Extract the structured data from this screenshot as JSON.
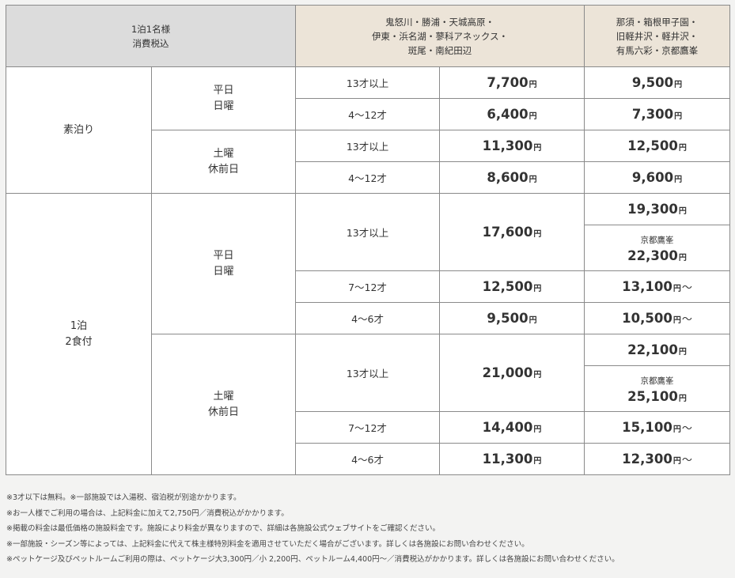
{
  "header": {
    "basis": [
      "1泊1名様",
      "消費税込"
    ],
    "group_a": [
      "鬼怒川・勝浦・天城高原・",
      "伊東・浜名湖・蓼科アネックス・",
      "斑尾・南紀田辺"
    ],
    "group_b": [
      "那須・箱根甲子園・",
      "旧軽井沢・軽井沢・",
      "有馬六彩・京都鷹峯"
    ]
  },
  "labels": {
    "room_only": "素泊り",
    "two_meals": [
      "1泊",
      "2食付"
    ],
    "weekday": [
      "平日",
      "日曜"
    ],
    "saturday": [
      "土曜",
      "休前日"
    ],
    "age_13": "13才以上",
    "age_4_12": "4〜12才",
    "age_7_12": "7〜12才",
    "age_4_6": "4〜6才",
    "yen": "円",
    "from": "〜",
    "kyoto": "京都鷹峯"
  },
  "room_only": {
    "weekday": {
      "adult": {
        "a": "7,700",
        "b": "9,500"
      },
      "child": {
        "a": "6,400",
        "b": "7,300"
      }
    },
    "saturday": {
      "adult": {
        "a": "11,300",
        "b": "12,500"
      },
      "child": {
        "a": "8,600",
        "b": "9,600"
      }
    }
  },
  "two_meals": {
    "weekday": {
      "adult": {
        "a": "17,600",
        "b": "19,300",
        "b_kyoto": "22,300"
      },
      "child_7_12": {
        "a": "12,500",
        "b": "13,100"
      },
      "child_4_6": {
        "a": "9,500",
        "b": "10,500"
      }
    },
    "saturday": {
      "adult": {
        "a": "21,000",
        "b": "22,100",
        "b_kyoto": "25,100"
      },
      "child_7_12": {
        "a": "14,400",
        "b": "15,100"
      },
      "child_4_6": {
        "a": "11,300",
        "b": "12,300"
      }
    }
  },
  "notes": [
    "※3才以下は無料。※一部施設では入湯税、宿泊税が別途かかります。",
    "※お一人様でご利用の場合は、上記料金に加えて2,750円／消費税込がかかります。",
    "※掲載の料金は最低価格の施設料金です。施設により料金が異なりますので、詳細は各施設公式ウェブサイトをご確認ください。",
    "※一部施設・シーズン等によっては、上記料金に代えて株主様特別料金を適用させていただく場合がございます。詳しくは各施設にお問い合わせください。",
    "※ペットケージ及びペットルームご利用の際は、ペットケージ大3,300円／小 2,200円、ペットルーム4,400円〜／消費税込がかかります。詳しくは各施設にお問い合わせください。"
  ]
}
